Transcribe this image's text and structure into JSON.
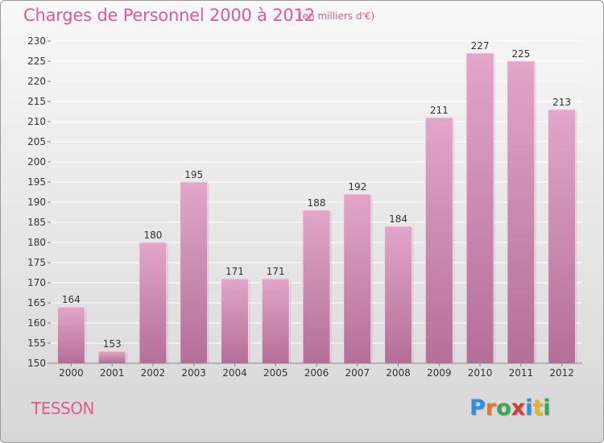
{
  "header": {
    "title": "Charges de Personnel 2000 à 2012",
    "subtitle": "(en milliers d'€)"
  },
  "footer": {
    "city": "TESSON",
    "logo_text": "Proxiti",
    "logo_colors": [
      "#2f8fd8",
      "#e07a2a",
      "#3aa84f",
      "#d83a3a",
      "#2f8fd8",
      "#e0b82a",
      "#3aa84f"
    ]
  },
  "colors": {
    "bar_top": "#e2a6c9",
    "bar_bottom": "#b46f98",
    "grid": "#ffffff",
    "axis_text": "#333333",
    "accent": "#e05b8e"
  },
  "chart_data": {
    "type": "bar",
    "title": "Charges de Personnel 2000 à 2012",
    "subtitle": "(en milliers d'€)",
    "xlabel": "",
    "ylabel": "",
    "categories": [
      "2000",
      "2001",
      "2002",
      "2003",
      "2004",
      "2005",
      "2006",
      "2007",
      "2008",
      "2009",
      "2010",
      "2011",
      "2012"
    ],
    "values": [
      164,
      153,
      180,
      195,
      171,
      171,
      188,
      192,
      184,
      211,
      227,
      225,
      213
    ],
    "ylim": [
      150,
      230
    ],
    "ytick_step": 5,
    "grid": true,
    "legend": "none",
    "data_labels": true
  }
}
